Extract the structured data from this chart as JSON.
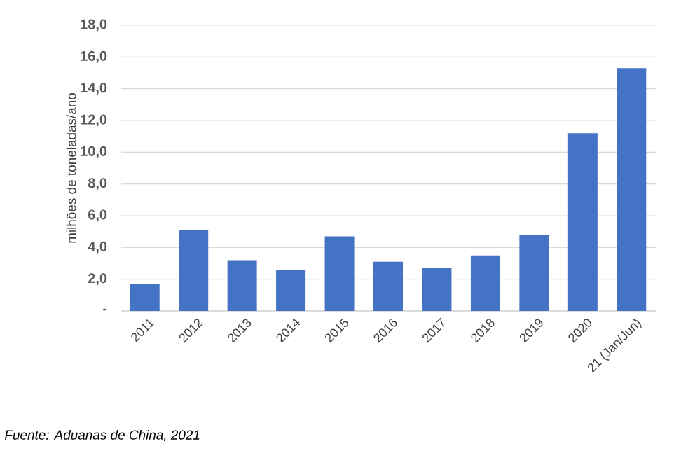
{
  "chart_data": {
    "type": "bar",
    "ylabel": "milhões de toneladas/ano",
    "categories": [
      "2011",
      "2012",
      "2013",
      "2014",
      "2015",
      "2016",
      "2017",
      "2018",
      "2019",
      "2020",
      "21 (Jan/Jun)"
    ],
    "values": [
      1.7,
      5.1,
      3.2,
      2.6,
      4.7,
      3.1,
      2.7,
      3.5,
      4.8,
      11.2,
      15.3
    ],
    "color": "#4472c4",
    "ylim": [
      0,
      18
    ],
    "yticks": [
      {
        "value": 0,
        "label": "-"
      },
      {
        "value": 2,
        "label": "2,0"
      },
      {
        "value": 4,
        "label": "4,0"
      },
      {
        "value": 6,
        "label": "6,0"
      },
      {
        "value": 8,
        "label": "8,0"
      },
      {
        "value": 10,
        "label": "10,0"
      },
      {
        "value": 12,
        "label": "12,0"
      },
      {
        "value": 14,
        "label": "14,0"
      },
      {
        "value": 16,
        "label": "16,0"
      },
      {
        "value": 18,
        "label": "18,0"
      }
    ],
    "grid": "y",
    "annotations": [
      "Fuente: *Aduanas de China, 2021*"
    ]
  }
}
